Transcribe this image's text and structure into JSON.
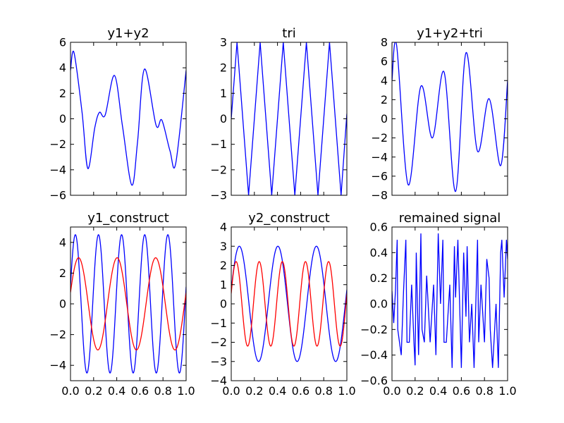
{
  "chart_data": [
    {
      "type": "line",
      "title": "y1+y2",
      "xlim": [
        0,
        1
      ],
      "ylim": [
        -6,
        6
      ],
      "xticks": [],
      "yticks": [
        -6,
        -4,
        -2,
        0,
        2,
        4,
        6
      ],
      "yticklabels": [
        "−6",
        "−4",
        "−2",
        "0",
        "2",
        "4",
        "6"
      ],
      "series": [
        {
          "color": "#0000ff",
          "x": [
            0,
            0.03,
            0.1,
            0.15,
            0.21,
            0.25,
            0.3,
            0.38,
            0.45,
            0.53,
            0.58,
            0.64,
            0.74,
            0.79,
            0.86,
            0.91,
            1.0
          ],
          "y": [
            3.8,
            5.2,
            0.5,
            -3.9,
            -0.7,
            0.5,
            0.3,
            3.4,
            -0.6,
            -5.2,
            -1.8,
            3.9,
            -0.5,
            -0.1,
            -2.5,
            -3.5,
            3.8
          ]
        }
      ]
    },
    {
      "type": "line",
      "title": "tri",
      "xlim": [
        0,
        1
      ],
      "ylim": [
        -3,
        3
      ],
      "xticks": [],
      "yticks": [
        -3,
        -2,
        -1,
        0,
        1,
        2,
        3
      ],
      "yticklabels": [
        "−3",
        "−2",
        "−1",
        "0",
        "1",
        "2",
        "3"
      ],
      "series": [
        {
          "color": "#0000ff",
          "x": [
            0,
            0.05,
            0.15,
            0.25,
            0.35,
            0.45,
            0.55,
            0.65,
            0.75,
            0.85,
            0.95,
            1.0
          ],
          "y": [
            0,
            3,
            -3,
            3,
            -3,
            3,
            -3,
            3,
            -3,
            3,
            -3,
            0.2
          ]
        }
      ]
    },
    {
      "type": "line",
      "title": "y1+y2+tri",
      "xlim": [
        0,
        1
      ],
      "ylim": [
        -8,
        8
      ],
      "xticks": [],
      "yticks": [
        -8,
        -6,
        -4,
        -2,
        0,
        2,
        4,
        6,
        8
      ],
      "yticklabels": [
        "−8",
        "−6",
        "−4",
        "−2",
        "0",
        "2",
        "4",
        "6",
        "8"
      ],
      "series": [
        {
          "color": "#0000ff",
          "x": [
            0,
            0.04,
            0.14,
            0.25,
            0.35,
            0.45,
            0.55,
            0.64,
            0.74,
            0.84,
            0.94,
            1.0
          ],
          "y": [
            4.0,
            7.7,
            -6.9,
            3.4,
            -2.0,
            4.9,
            -7.6,
            6.9,
            -3.4,
            2.1,
            -4.9,
            4.0
          ]
        }
      ]
    },
    {
      "type": "line",
      "title": "y1_construct",
      "xlim": [
        0,
        1
      ],
      "ylim": [
        -5,
        5
      ],
      "xticks": [
        0,
        0.2,
        0.4,
        0.6,
        0.8,
        1.0
      ],
      "xticklabels": [
        "0.0",
        "0.2",
        "0.4",
        "0.6",
        "0.8",
        "1.0"
      ],
      "yticks": [
        -4,
        -2,
        0,
        2,
        4
      ],
      "yticklabels": [
        "−4",
        "−2",
        "0",
        "2",
        "4"
      ],
      "series": [
        {
          "color": "#0000ff",
          "function": "sine",
          "amplitude": 4.5,
          "frequency": 5,
          "phase": 0.25,
          "x_range": [
            0,
            1
          ]
        },
        {
          "color": "#ff0000",
          "function": "sine",
          "amplitude": 3,
          "frequency": 3,
          "phase": 0.25,
          "x_range": [
            0,
            1
          ]
        }
      ]
    },
    {
      "type": "line",
      "title": "y2_construct",
      "xlim": [
        0,
        1
      ],
      "ylim": [
        -4,
        4
      ],
      "xticks": [
        0,
        0.2,
        0.4,
        0.6,
        0.8,
        1.0
      ],
      "xticklabels": [
        "0.0",
        "0.2",
        "0.4",
        "0.6",
        "0.8",
        "1.0"
      ],
      "yticks": [
        -4,
        -3,
        -2,
        -1,
        0,
        1,
        2,
        3,
        4
      ],
      "yticklabels": [
        "−4",
        "−3",
        "−2",
        "−1",
        "0",
        "1",
        "2",
        "3",
        "4"
      ],
      "series": [
        {
          "color": "#0000ff",
          "function": "sine",
          "amplitude": 3,
          "frequency": 3,
          "phase": 0.25,
          "x_range": [
            0,
            1
          ]
        },
        {
          "color": "#ff0000",
          "function": "sine",
          "amplitude": 2.2,
          "frequency": 5,
          "phase": 0.25,
          "x_range": [
            0,
            1
          ]
        }
      ]
    },
    {
      "type": "line",
      "title": "remained signal",
      "xlim": [
        0,
        1
      ],
      "ylim": [
        -0.6,
        0.6
      ],
      "xticks": [
        0,
        0.2,
        0.4,
        0.6,
        0.8,
        1.0
      ],
      "xticklabels": [
        "0.0",
        "0.2",
        "0.4",
        "0.6",
        "0.8",
        "1.0"
      ],
      "yticks": [
        -0.6,
        -0.4,
        -0.2,
        0,
        0.2,
        0.4,
        0.6
      ],
      "yticklabels": [
        "−0.6",
        "−0.4",
        "−0.2",
        "0.0",
        "0.2",
        "0.4",
        "0.6"
      ],
      "series": [
        {
          "color": "#0000ff",
          "x": [
            0,
            0.015,
            0.03,
            0.045,
            0.05,
            0.08,
            0.1,
            0.12,
            0.13,
            0.15,
            0.17,
            0.19,
            0.2,
            0.21,
            0.23,
            0.25,
            0.26,
            0.28,
            0.3,
            0.33,
            0.36,
            0.38,
            0.4,
            0.42,
            0.44,
            0.45,
            0.47,
            0.5,
            0.52,
            0.54,
            0.55,
            0.57,
            0.6,
            0.62,
            0.64,
            0.65,
            0.67,
            0.69,
            0.71,
            0.74,
            0.75,
            0.77,
            0.8,
            0.82,
            0.84,
            0.85,
            0.87,
            0.9,
            0.92,
            0.94,
            0.95,
            0.97,
            0.99,
            1.0
          ],
          "y": [
            0.1,
            -0.15,
            0.1,
            0.5,
            -0.2,
            -0.4,
            0.1,
            0.5,
            -0.3,
            -0.3,
            0.15,
            -0.3,
            -0.48,
            0.4,
            -0.4,
            0.55,
            -0.2,
            -0.3,
            0.22,
            -0.3,
            0.15,
            -0.4,
            0.55,
            0.0,
            0.5,
            -0.3,
            -0.3,
            0.15,
            -0.5,
            0.45,
            0.05,
            0.5,
            -0.5,
            0.4,
            -0.1,
            0.45,
            -0.3,
            0.0,
            -0.5,
            0.5,
            -0.3,
            0.15,
            -0.3,
            0.35,
            0.2,
            -0.2,
            -0.5,
            0.0,
            -0.5,
            0.4,
            0.5,
            0.05,
            0.5,
            0.35
          ]
        }
      ]
    }
  ]
}
